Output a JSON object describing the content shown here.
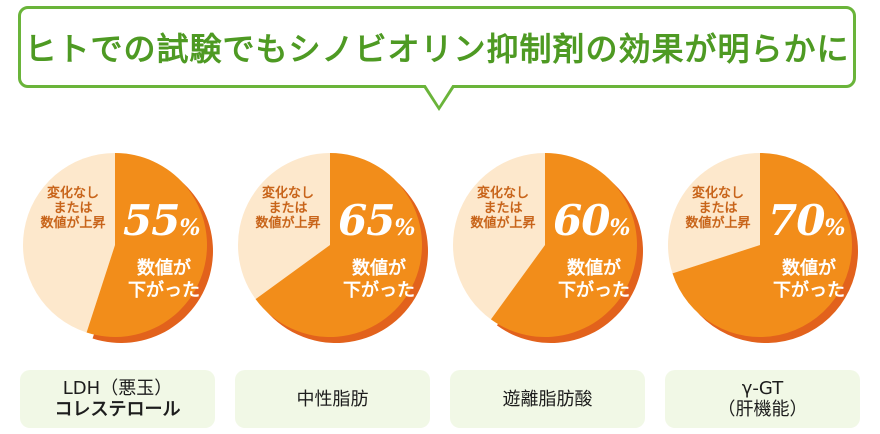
{
  "header": {
    "title": "ヒトでの試験でもシノビオリン抑制剤の効果が明らかに"
  },
  "legend_labels": {
    "unchanged": [
      "変化なし",
      "または",
      "数値が上昇"
    ],
    "decreased": [
      "数値が",
      "下がった"
    ]
  },
  "percent_unit": "%",
  "colors": {
    "decreased": "#f28d1a",
    "unchanged": "#fde8cc",
    "shadow": "#e2621c",
    "accent_green": "#6ab43a"
  },
  "chart_data": [
    {
      "type": "pie",
      "category_lines": [
        "LDH（悪玉）",
        "コレステロール"
      ],
      "decreased_pct": 55,
      "unchanged_pct": 45
    },
    {
      "type": "pie",
      "category_lines": [
        "中性脂肪"
      ],
      "decreased_pct": 65,
      "unchanged_pct": 35
    },
    {
      "type": "pie",
      "category_lines": [
        "遊離脂肪酸"
      ],
      "decreased_pct": 60,
      "unchanged_pct": 40
    },
    {
      "type": "pie",
      "category_lines": [
        "γ-GT",
        "（肝機能）"
      ],
      "decreased_pct": 70,
      "unchanged_pct": 30
    }
  ]
}
